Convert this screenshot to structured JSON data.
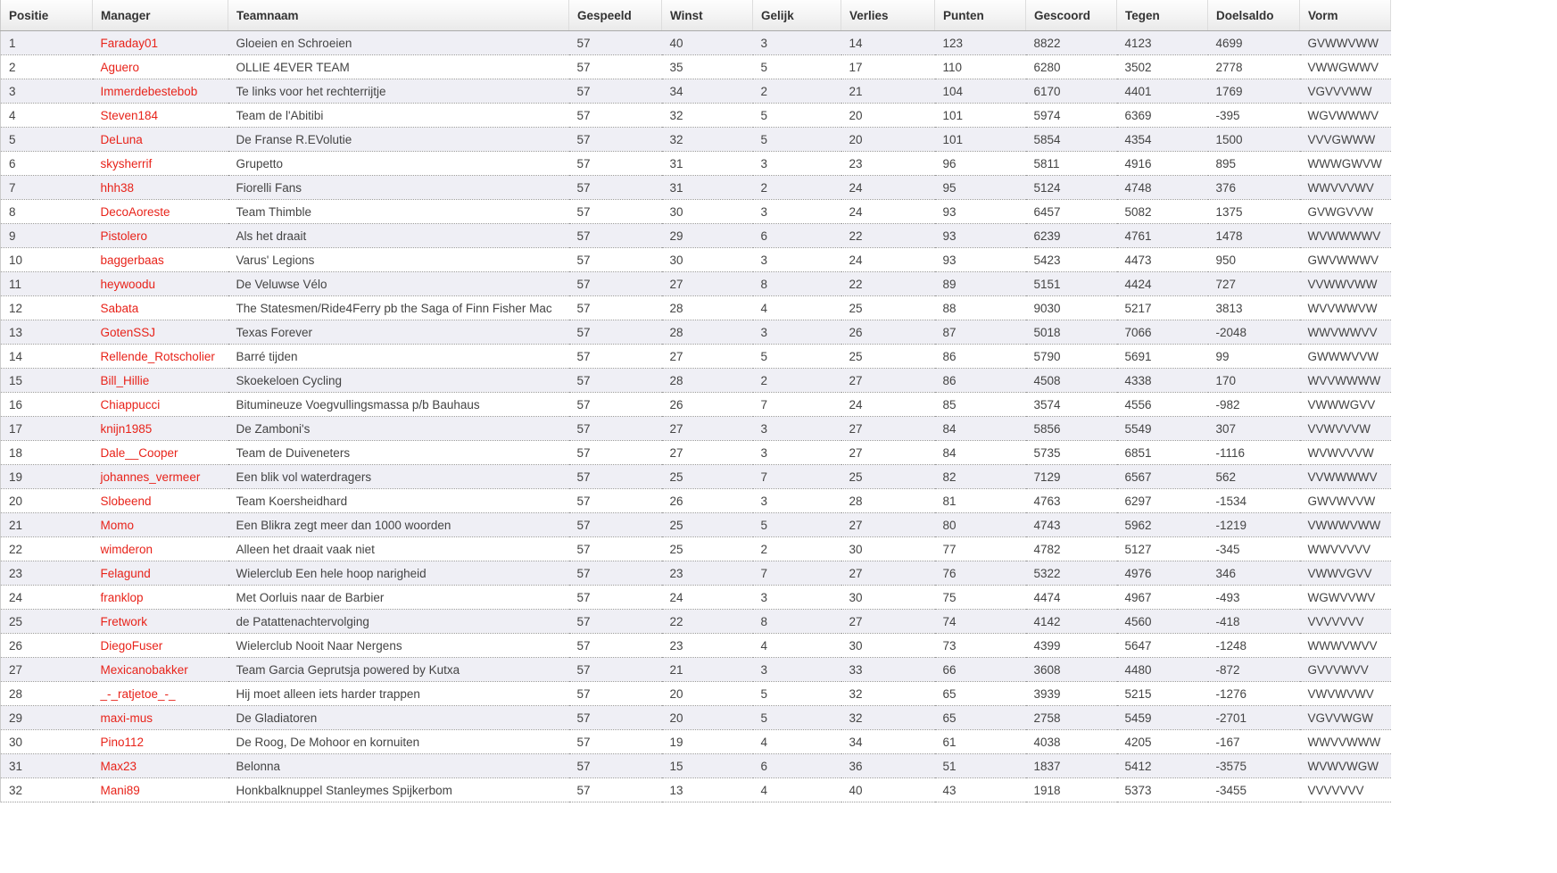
{
  "table": {
    "columns": [
      {
        "key": "positie",
        "label": "Positie"
      },
      {
        "key": "manager",
        "label": "Manager"
      },
      {
        "key": "teamnaam",
        "label": "Teamnaam"
      },
      {
        "key": "gespeeld",
        "label": "Gespeeld"
      },
      {
        "key": "winst",
        "label": "Winst"
      },
      {
        "key": "gelijk",
        "label": "Gelijk"
      },
      {
        "key": "verlies",
        "label": "Verlies"
      },
      {
        "key": "punten",
        "label": "Punten"
      },
      {
        "key": "gescoord",
        "label": "Gescoord"
      },
      {
        "key": "tegen",
        "label": "Tegen"
      },
      {
        "key": "doelsaldo",
        "label": "Doelsaldo"
      },
      {
        "key": "vorm",
        "label": "Vorm"
      }
    ],
    "rows": [
      {
        "positie": "1",
        "manager": "Faraday01",
        "teamnaam": "Gloeien en Schroeien",
        "gespeeld": "57",
        "winst": "40",
        "gelijk": "3",
        "verlies": "14",
        "punten": "123",
        "gescoord": "8822",
        "tegen": "4123",
        "doelsaldo": "4699",
        "vorm": "GVWWVWW"
      },
      {
        "positie": "2",
        "manager": "Aguero",
        "teamnaam": "OLLIE 4EVER TEAM",
        "gespeeld": "57",
        "winst": "35",
        "gelijk": "5",
        "verlies": "17",
        "punten": "110",
        "gescoord": "6280",
        "tegen": "3502",
        "doelsaldo": "2778",
        "vorm": "VWWGWWV"
      },
      {
        "positie": "3",
        "manager": "Immerdebestebob",
        "teamnaam": "Te links voor het rechterrijtje",
        "gespeeld": "57",
        "winst": "34",
        "gelijk": "2",
        "verlies": "21",
        "punten": "104",
        "gescoord": "6170",
        "tegen": "4401",
        "doelsaldo": "1769",
        "vorm": "VGVVVWW"
      },
      {
        "positie": "4",
        "manager": "Steven184",
        "teamnaam": "Team de l'Abitibi",
        "gespeeld": "57",
        "winst": "32",
        "gelijk": "5",
        "verlies": "20",
        "punten": "101",
        "gescoord": "5974",
        "tegen": "6369",
        "doelsaldo": "-395",
        "vorm": "WGVWWWV"
      },
      {
        "positie": "5",
        "manager": "DeLuna",
        "teamnaam": "De Franse R.EVolutie",
        "gespeeld": "57",
        "winst": "32",
        "gelijk": "5",
        "verlies": "20",
        "punten": "101",
        "gescoord": "5854",
        "tegen": "4354",
        "doelsaldo": "1500",
        "vorm": "VVVGWWW"
      },
      {
        "positie": "6",
        "manager": "skysherrif",
        "teamnaam": "Grupetto",
        "gespeeld": "57",
        "winst": "31",
        "gelijk": "3",
        "verlies": "23",
        "punten": "96",
        "gescoord": "5811",
        "tegen": "4916",
        "doelsaldo": "895",
        "vorm": "WWWGWVW"
      },
      {
        "positie": "7",
        "manager": "hhh38",
        "teamnaam": "Fiorelli Fans",
        "gespeeld": "57",
        "winst": "31",
        "gelijk": "2",
        "verlies": "24",
        "punten": "95",
        "gescoord": "5124",
        "tegen": "4748",
        "doelsaldo": "376",
        "vorm": "WWVVVWV"
      },
      {
        "positie": "8",
        "manager": "DecoAoreste",
        "teamnaam": "Team Thimble",
        "gespeeld": "57",
        "winst": "30",
        "gelijk": "3",
        "verlies": "24",
        "punten": "93",
        "gescoord": "6457",
        "tegen": "5082",
        "doelsaldo": "1375",
        "vorm": "GVWGVVW"
      },
      {
        "positie": "9",
        "manager": "Pistolero",
        "teamnaam": "Als het draait",
        "gespeeld": "57",
        "winst": "29",
        "gelijk": "6",
        "verlies": "22",
        "punten": "93",
        "gescoord": "6239",
        "tegen": "4761",
        "doelsaldo": "1478",
        "vorm": "WVWWWWV"
      },
      {
        "positie": "10",
        "manager": "baggerbaas",
        "teamnaam": "Varus' Legions",
        "gespeeld": "57",
        "winst": "30",
        "gelijk": "3",
        "verlies": "24",
        "punten": "93",
        "gescoord": "5423",
        "tegen": "4473",
        "doelsaldo": "950",
        "vorm": "GWVWWWV"
      },
      {
        "positie": "11",
        "manager": "heywoodu",
        "teamnaam": "De Veluwse Vélo",
        "gespeeld": "57",
        "winst": "27",
        "gelijk": "8",
        "verlies": "22",
        "punten": "89",
        "gescoord": "5151",
        "tegen": "4424",
        "doelsaldo": "727",
        "vorm": "VVWWVWW"
      },
      {
        "positie": "12",
        "manager": "Sabata",
        "teamnaam": "The Statesmen/Ride4Ferry pb the Saga of Finn Fisher Mac",
        "gespeeld": "57",
        "winst": "28",
        "gelijk": "4",
        "verlies": "25",
        "punten": "88",
        "gescoord": "9030",
        "tegen": "5217",
        "doelsaldo": "3813",
        "vorm": "WVVWWVW"
      },
      {
        "positie": "13",
        "manager": "GotenSSJ",
        "teamnaam": "Texas Forever",
        "gespeeld": "57",
        "winst": "28",
        "gelijk": "3",
        "verlies": "26",
        "punten": "87",
        "gescoord": "5018",
        "tegen": "7066",
        "doelsaldo": "-2048",
        "vorm": "WWVWWVV"
      },
      {
        "positie": "14",
        "manager": "Rellende_Rotscholier",
        "teamnaam": "Barré tijden",
        "gespeeld": "57",
        "winst": "27",
        "gelijk": "5",
        "verlies": "25",
        "punten": "86",
        "gescoord": "5790",
        "tegen": "5691",
        "doelsaldo": "99",
        "vorm": "GWWWVVW"
      },
      {
        "positie": "15",
        "manager": "Bill_Hillie",
        "teamnaam": "Skoekeloen Cycling",
        "gespeeld": "57",
        "winst": "28",
        "gelijk": "2",
        "verlies": "27",
        "punten": "86",
        "gescoord": "4508",
        "tegen": "4338",
        "doelsaldo": "170",
        "vorm": "WVVWWWW"
      },
      {
        "positie": "16",
        "manager": "Chiappucci",
        "teamnaam": "Bitumineuze Voegvullingsmassa p/b Bauhaus",
        "gespeeld": "57",
        "winst": "26",
        "gelijk": "7",
        "verlies": "24",
        "punten": "85",
        "gescoord": "3574",
        "tegen": "4556",
        "doelsaldo": "-982",
        "vorm": "VWWWGVV"
      },
      {
        "positie": "17",
        "manager": "knijn1985",
        "teamnaam": "De Zamboni's",
        "gespeeld": "57",
        "winst": "27",
        "gelijk": "3",
        "verlies": "27",
        "punten": "84",
        "gescoord": "5856",
        "tegen": "5549",
        "doelsaldo": "307",
        "vorm": "VVWVVVW"
      },
      {
        "positie": "18",
        "manager": "Dale__Cooper",
        "teamnaam": "Team de Duiveneters",
        "gespeeld": "57",
        "winst": "27",
        "gelijk": "3",
        "verlies": "27",
        "punten": "84",
        "gescoord": "5735",
        "tegen": "6851",
        "doelsaldo": "-1116",
        "vorm": "WVWVVVW"
      },
      {
        "positie": "19",
        "manager": "johannes_vermeer",
        "teamnaam": "Een blik vol waterdragers",
        "gespeeld": "57",
        "winst": "25",
        "gelijk": "7",
        "verlies": "25",
        "punten": "82",
        "gescoord": "7129",
        "tegen": "6567",
        "doelsaldo": "562",
        "vorm": "VVWWWWV"
      },
      {
        "positie": "20",
        "manager": "Slobeend",
        "teamnaam": "Team Koersheidhard",
        "gespeeld": "57",
        "winst": "26",
        "gelijk": "3",
        "verlies": "28",
        "punten": "81",
        "gescoord": "4763",
        "tegen": "6297",
        "doelsaldo": "-1534",
        "vorm": "GWVWVVW"
      },
      {
        "positie": "21",
        "manager": "Momo",
        "teamnaam": "Een Blikra zegt meer dan 1000 woorden",
        "gespeeld": "57",
        "winst": "25",
        "gelijk": "5",
        "verlies": "27",
        "punten": "80",
        "gescoord": "4743",
        "tegen": "5962",
        "doelsaldo": "-1219",
        "vorm": "VWWWVWW"
      },
      {
        "positie": "22",
        "manager": "wimderon",
        "teamnaam": "Alleen het draait vaak niet",
        "gespeeld": "57",
        "winst": "25",
        "gelijk": "2",
        "verlies": "30",
        "punten": "77",
        "gescoord": "4782",
        "tegen": "5127",
        "doelsaldo": "-345",
        "vorm": "WWVVVVV"
      },
      {
        "positie": "23",
        "manager": "Felagund",
        "teamnaam": "Wielerclub Een hele hoop narigheid",
        "gespeeld": "57",
        "winst": "23",
        "gelijk": "7",
        "verlies": "27",
        "punten": "76",
        "gescoord": "5322",
        "tegen": "4976",
        "doelsaldo": "346",
        "vorm": "VWWVGVV"
      },
      {
        "positie": "24",
        "manager": "franklop",
        "teamnaam": "Met Oorluis naar de Barbier",
        "gespeeld": "57",
        "winst": "24",
        "gelijk": "3",
        "verlies": "30",
        "punten": "75",
        "gescoord": "4474",
        "tegen": "4967",
        "doelsaldo": "-493",
        "vorm": "WGWVVWV"
      },
      {
        "positie": "25",
        "manager": "Fretwork",
        "teamnaam": "de Patattenachtervolging",
        "gespeeld": "57",
        "winst": "22",
        "gelijk": "8",
        "verlies": "27",
        "punten": "74",
        "gescoord": "4142",
        "tegen": "4560",
        "doelsaldo": "-418",
        "vorm": "VVVVVVV"
      },
      {
        "positie": "26",
        "manager": "DiegoFuser",
        "teamnaam": "Wielerclub Nooit Naar Nergens",
        "gespeeld": "57",
        "winst": "23",
        "gelijk": "4",
        "verlies": "30",
        "punten": "73",
        "gescoord": "4399",
        "tegen": "5647",
        "doelsaldo": "-1248",
        "vorm": "WWWVWVV"
      },
      {
        "positie": "27",
        "manager": "Mexicanobakker",
        "teamnaam": "Team Garcia Geprutsja powered by Kutxa",
        "gespeeld": "57",
        "winst": "21",
        "gelijk": "3",
        "verlies": "33",
        "punten": "66",
        "gescoord": "3608",
        "tegen": "4480",
        "doelsaldo": "-872",
        "vorm": "GVVVWVV"
      },
      {
        "positie": "28",
        "manager": "_-_ratjetoe_-_",
        "teamnaam": "Hij moet alleen iets harder trappen",
        "gespeeld": "57",
        "winst": "20",
        "gelijk": "5",
        "verlies": "32",
        "punten": "65",
        "gescoord": "3939",
        "tegen": "5215",
        "doelsaldo": "-1276",
        "vorm": "VWVWVWV"
      },
      {
        "positie": "29",
        "manager": "maxi-mus",
        "teamnaam": "De Gladiatoren",
        "gespeeld": "57",
        "winst": "20",
        "gelijk": "5",
        "verlies": "32",
        "punten": "65",
        "gescoord": "2758",
        "tegen": "5459",
        "doelsaldo": "-2701",
        "vorm": "VGVVWGW"
      },
      {
        "positie": "30",
        "manager": "Pino112",
        "teamnaam": "De Roog, De Mohoor en kornuiten",
        "gespeeld": "57",
        "winst": "19",
        "gelijk": "4",
        "verlies": "34",
        "punten": "61",
        "gescoord": "4038",
        "tegen": "4205",
        "doelsaldo": "-167",
        "vorm": "WWVVWWW"
      },
      {
        "positie": "31",
        "manager": "Max23",
        "teamnaam": "Belonna",
        "gespeeld": "57",
        "winst": "15",
        "gelijk": "6",
        "verlies": "36",
        "punten": "51",
        "gescoord": "1837",
        "tegen": "5412",
        "doelsaldo": "-3575",
        "vorm": "WVWVWGW"
      },
      {
        "positie": "32",
        "manager": "Mani89",
        "teamnaam": "Honkbalknuppel Stanleymes Spijkerbom",
        "gespeeld": "57",
        "winst": "13",
        "gelijk": "4",
        "verlies": "40",
        "punten": "43",
        "gescoord": "1918",
        "tegen": "5373",
        "doelsaldo": "-3455",
        "vorm": "VVVVVVV"
      }
    ]
  },
  "colors": {
    "manager_link": "#e8231a",
    "row_alt_background": "#efeff5",
    "header_text": "#333333",
    "cell_text": "#444444"
  }
}
